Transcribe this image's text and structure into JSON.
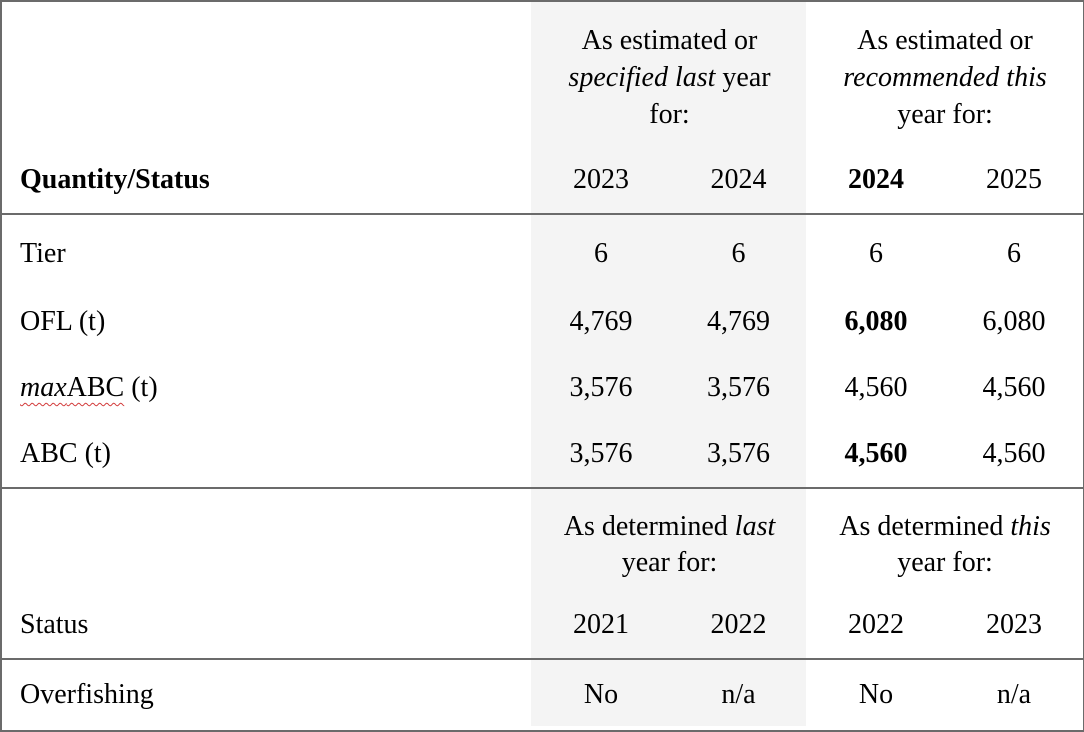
{
  "header": {
    "quantity_status": "Quantity/Status",
    "last_year_group": {
      "line1": "As estimated or",
      "line2_italic_a": "specified last",
      "line2_tail": " year",
      "line3": "for:"
    },
    "this_year_group": {
      "line1": "As estimated or",
      "line2_italic": "recommended this",
      "line3": "year for:"
    },
    "years": [
      "2023",
      "2024",
      "2024",
      "2025"
    ]
  },
  "rows": [
    {
      "label": "Tier",
      "values": [
        "6",
        "6",
        "6",
        "6"
      ]
    },
    {
      "label": "OFL (t)",
      "values": [
        "4,769",
        "4,769",
        "6,080",
        "6,080"
      ]
    },
    {
      "label_italic": "max",
      "label_rest": "ABC (t)",
      "values": [
        "3,576",
        "3,576",
        "4,560",
        "4,560"
      ]
    },
    {
      "label": "ABC (t)",
      "values": [
        "3,576",
        "3,576",
        "4,560",
        "4,560"
      ]
    }
  ],
  "status_header": {
    "last_group": {
      "text_a": "As determined ",
      "text_italic": "last",
      "line2": "year for:"
    },
    "this_group": {
      "text_a": "As determined ",
      "text_italic": "this",
      "line2": "year for:"
    },
    "label": "Status",
    "years": [
      "2021",
      "2022",
      "2022",
      "2023"
    ]
  },
  "status_rows": [
    {
      "label": "Overfishing",
      "values": [
        "No",
        "n/a",
        "No",
        "n/a"
      ]
    }
  ]
}
